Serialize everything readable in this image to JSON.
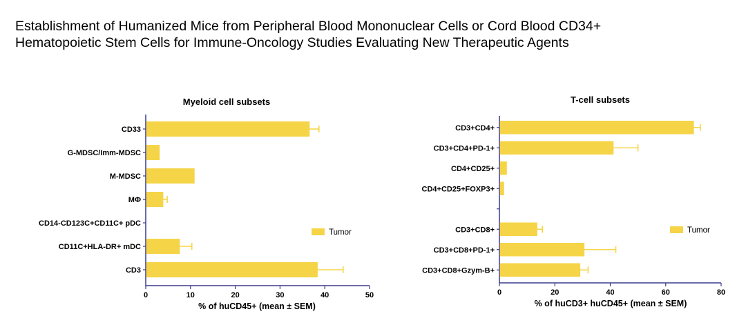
{
  "page": {
    "title_line1": "Establishment of Humanized Mice from Peripheral Blood Mononuclear Cells or Cord Blood CD34+",
    "title_line2": "Hematopoietic Stem Cells for Immune-Oncology Studies Evaluating New Therapeutic Agents"
  },
  "colors": {
    "bar": "#F5D547",
    "axis": "#3a3a8c"
  },
  "chart_data": [
    {
      "type": "bar",
      "orientation": "horizontal",
      "title": "Myeloid cell subsets",
      "xlabel": "% of huCD45+ (mean ± SEM)",
      "xlim": [
        0,
        50
      ],
      "xticks": [
        0,
        10,
        20,
        30,
        40,
        50
      ],
      "categories": [
        "CD33",
        "G-MDSC/Imm-MDSC",
        "M-MDSC",
        "MΦ",
        "CD14-CD123C+CD11C+ pDC",
        "CD11C+HLA-DR+ mDC",
        "CD3"
      ],
      "series": [
        {
          "name": "Tumor",
          "values": [
            36.5,
            3,
            10.8,
            3.8,
            0,
            7.5,
            38.3
          ],
          "errors": [
            2.2,
            0,
            0,
            1,
            0,
            2.8,
            5.8
          ]
        }
      ],
      "legend": "right"
    },
    {
      "type": "bar",
      "orientation": "horizontal",
      "title": "T-cell subsets",
      "xlabel": "% of huCD3+ huCD45+ (mean ± SEM)",
      "xlim": [
        0,
        80
      ],
      "xticks": [
        0,
        20,
        40,
        60,
        80
      ],
      "categories": [
        "CD3+CD4+",
        "CD3+CD4+PD-1+",
        "CD4+CD25+",
        "CD4+CD25+FOXP3+",
        "",
        "CD3+CD8+",
        "CD3+CD8+PD-1+",
        "CD3+CD8+Gzym-B+"
      ],
      "series": [
        {
          "name": "Tumor",
          "values": [
            70,
            41,
            2.5,
            1.5,
            null,
            13.5,
            30.5,
            29
          ],
          "errors": [
            2.5,
            9,
            0,
            0,
            null,
            2,
            11.5,
            3
          ]
        }
      ],
      "legend": "right"
    }
  ]
}
